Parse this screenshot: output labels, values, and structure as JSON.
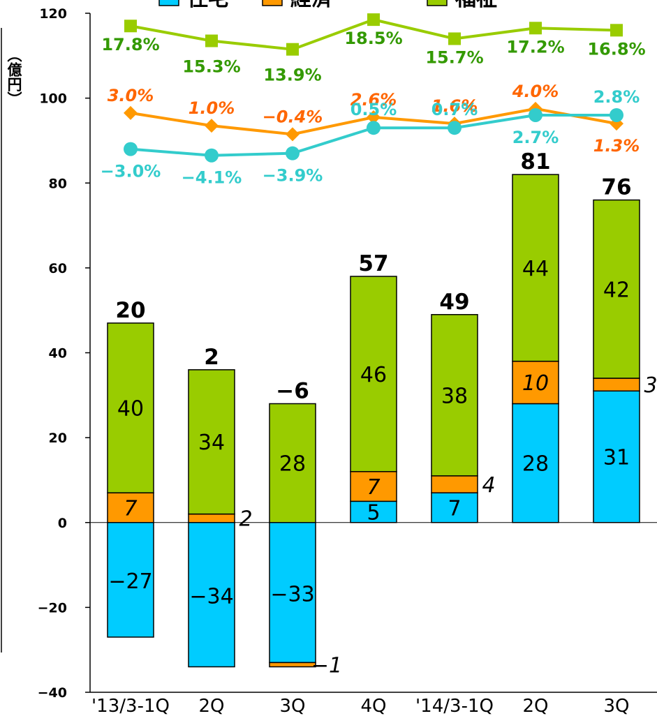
{
  "chart_data": {
    "type": "bar",
    "stacked": true,
    "ylabel": "（億円）",
    "ylim": [
      -40,
      120
    ],
    "yticks": [
      -40,
      -20,
      0,
      20,
      40,
      60,
      80,
      100,
      120
    ],
    "categories": [
      "'13/3-1Q",
      "2Q",
      "3Q",
      "4Q",
      "'14/3-1Q",
      "2Q",
      "3Q"
    ],
    "series": [
      {
        "name": "住宅",
        "color": "#00ccff",
        "values": [
          -27,
          -34,
          -33,
          5,
          7,
          28,
          31
        ],
        "labels": [
          "−27",
          "−34",
          "−33",
          "5",
          "7",
          "28",
          "31"
        ]
      },
      {
        "name": "経済",
        "color": "#ff9900",
        "values": [
          7,
          2,
          -1,
          7,
          4,
          10,
          3
        ],
        "labels": [
          "7",
          "2",
          "−1",
          "7",
          "4",
          "10",
          "3"
        ]
      },
      {
        "name": "福祉",
        "color": "#99cc00",
        "values": [
          40,
          34,
          28,
          46,
          38,
          44,
          42
        ],
        "labels": [
          "40",
          "34",
          "28",
          "46",
          "38",
          "44",
          "42"
        ]
      }
    ],
    "totals": [
      "20",
      "2",
      "−6",
      "57",
      "49",
      "81",
      "76"
    ],
    "margin_lines": [
      {
        "series": "福祉",
        "color": "#99cc00",
        "label_color": "#339900",
        "y_positions": [
          117,
          113.5,
          111.5,
          118.5,
          114,
          116.5,
          116
        ],
        "labels": [
          "17.8%",
          "15.3%",
          "13.9%",
          "18.5%",
          "15.7%",
          "17.2%",
          "16.8%"
        ]
      },
      {
        "series": "経済",
        "color": "#ff9900",
        "label_color": "#ff6600",
        "y_positions": [
          96.5,
          93.5,
          91.5,
          95.5,
          94,
          97.5,
          94
        ],
        "labels": [
          "3.0%",
          "1.0%",
          "−0.4%",
          "2.6%",
          "1.6%",
          "4.0%",
          "1.3%"
        ]
      },
      {
        "series": "住宅",
        "color": "#33cccc",
        "label_color": "#33cccc",
        "y_positions": [
          88,
          86.5,
          87,
          93,
          93,
          96,
          96
        ],
        "labels": [
          "−3.0%",
          "−4.1%",
          "−3.9%",
          "0.5%",
          "0.7%",
          "2.7%",
          "2.8%"
        ]
      }
    ],
    "legend": {
      "placement": "top",
      "items": [
        "住宅",
        "経済",
        "福祉"
      ]
    }
  }
}
